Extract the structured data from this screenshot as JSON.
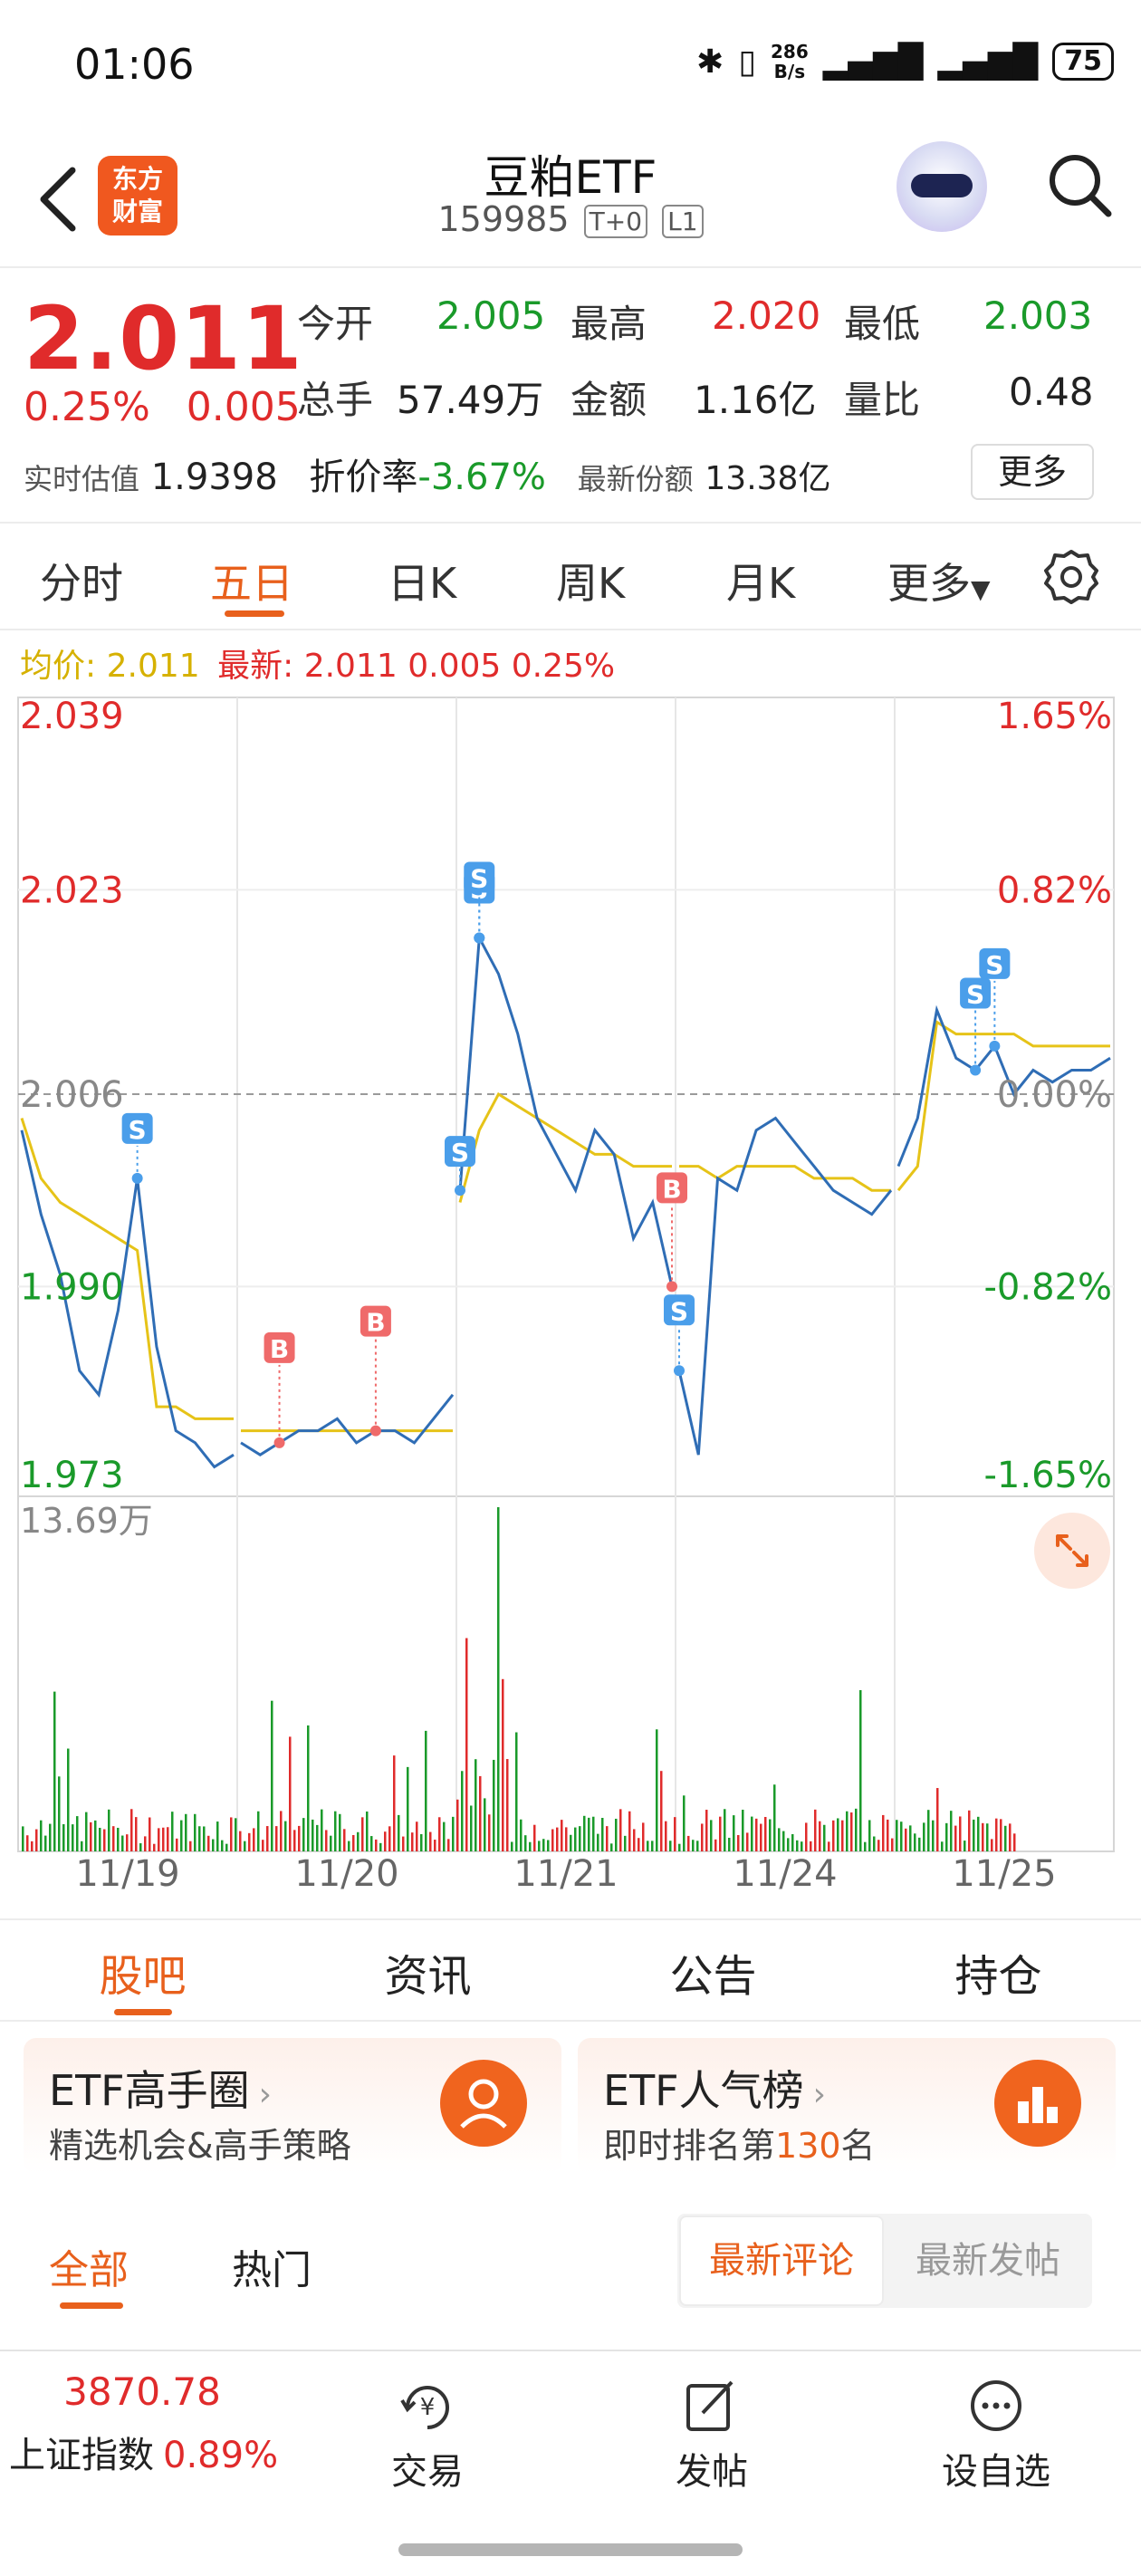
{
  "status_bar": {
    "time": "01:06",
    "net_speed_value": "286",
    "net_speed_unit": "B/s",
    "battery": "75"
  },
  "header": {
    "broker_logo": "东方\n财富",
    "stock_name": "豆粕ETF",
    "stock_code": "159985",
    "tag_t0": "T+0",
    "tag_l1": "L1"
  },
  "quote": {
    "last_price": "2.011",
    "change_pct": "0.25%",
    "change_amt": "0.005",
    "open_label": "今开",
    "open": "2.005",
    "high_label": "最高",
    "high": "2.020",
    "low_label": "最低",
    "low": "2.003",
    "volume_label": "总手",
    "volume": "57.49万",
    "amount_label": "金额",
    "amount": "1.16亿",
    "vol_ratio_label": "量比",
    "vol_ratio": "0.48",
    "est_label": "实时估值",
    "est_value": "1.9398",
    "discount_label": "折价率",
    "discount_value": "-3.67%",
    "shares_label": "最新份额",
    "shares_value": "13.38亿",
    "more_button": "更多"
  },
  "period_tabs": {
    "intraday": "分时",
    "five_day": "五日",
    "daily": "日K",
    "weekly": "周K",
    "monthly": "月K",
    "more": "更多"
  },
  "chart_legend": {
    "avg_label": "均价:",
    "avg_value": "2.011",
    "latest_label": "最新:",
    "latest_value": "2.011",
    "latest_change": "0.005",
    "latest_pct": "0.25%"
  },
  "chart_data": {
    "type": "line",
    "title": "",
    "x_labels": [
      "11/19",
      "11/20",
      "11/21",
      "11/24",
      "11/25"
    ],
    "y_left_ticks": [
      "2.039",
      "2.023",
      "2.006",
      "1.990",
      "1.973"
    ],
    "y_right_ticks": [
      "1.65%",
      "0.82%",
      "0.00%",
      "-0.82%",
      "-1.65%"
    ],
    "ylim": [
      1.973,
      2.039
    ],
    "prev_close": 2.006,
    "volume_max_label": "13.69万",
    "series": [
      {
        "name": "price",
        "values": [
          2.003,
          1.996,
          1.991,
          1.983,
          1.981,
          1.988,
          1.999,
          1.985,
          1.978,
          1.977,
          1.975,
          1.976,
          1.977,
          1.976,
          1.977,
          1.978,
          1.978,
          1.979,
          1.977,
          1.978,
          1.978,
          1.977,
          1.979,
          1.981,
          1.998,
          2.019,
          2.016,
          2.011,
          2.004,
          2.001,
          1.998,
          2.003,
          2.001,
          1.994,
          1.997,
          1.99,
          1.983,
          1.976,
          1.999,
          1.998,
          2.003,
          2.004,
          2.002,
          2.0,
          1.998,
          1.997,
          1.996,
          1.998,
          2.0,
          2.004,
          2.013,
          2.009,
          2.008,
          2.01,
          2.006,
          2.008,
          2.007,
          2.008,
          2.008,
          2.009
        ]
      },
      {
        "name": "avg",
        "values": [
          2.004,
          1.999,
          1.997,
          1.996,
          1.995,
          1.994,
          1.993,
          1.98,
          1.98,
          1.979,
          1.979,
          1.979,
          1.978,
          1.978,
          1.978,
          1.978,
          1.978,
          1.978,
          1.978,
          1.978,
          1.978,
          1.978,
          1.978,
          1.978,
          1.997,
          2.003,
          2.006,
          2.005,
          2.004,
          2.003,
          2.002,
          2.001,
          2.001,
          2.0,
          2.0,
          2.0,
          2.0,
          2.0,
          1.999,
          2.0,
          2.0,
          2.0,
          2.0,
          1.999,
          1.999,
          1.999,
          1.998,
          1.998,
          1.998,
          2.0,
          2.012,
          2.011,
          2.011,
          2.011,
          2.011,
          2.01,
          2.01,
          2.01,
          2.01,
          2.01
        ]
      }
    ],
    "markers": [
      {
        "label": "S",
        "day": 0,
        "color": "#4a9eea"
      },
      {
        "label": "B",
        "day": 1,
        "color": "#ef6a6a"
      },
      {
        "label": "B",
        "day": 1,
        "color": "#ef6a6a"
      },
      {
        "label": "S",
        "day": 2,
        "color": "#4a9eea"
      },
      {
        "label": "S",
        "day": 2,
        "color": "#4a9eea"
      },
      {
        "label": "S",
        "day": 2,
        "color": "#4a9eea"
      },
      {
        "label": "B",
        "day": 2,
        "color": "#ef6a6a"
      },
      {
        "label": "S",
        "day": 3,
        "color": "#4a9eea"
      },
      {
        "label": "S",
        "day": 4,
        "color": "#4a9eea"
      },
      {
        "label": "S",
        "day": 4,
        "color": "#4a9eea"
      }
    ],
    "colors": {
      "price": "#2f6db5",
      "avg": "#e6c318",
      "up": "#e02b2b",
      "down": "#1a9a2a"
    }
  },
  "content_tabs": [
    "股吧",
    "资讯",
    "公告",
    "持仓"
  ],
  "promo": {
    "card1_title": "ETF高手圈",
    "card1_sub": "精选机会&高手策略",
    "card2_title": "ETF人气榜",
    "card2_sub_prefix": "即时排名第",
    "card2_rank": "130",
    "card2_sub_suffix": "名"
  },
  "filters": {
    "all": "全部",
    "hot": "热门",
    "latest_comment": "最新评论",
    "latest_post": "最新发帖"
  },
  "bottom_bar": {
    "index_value": "3870.78",
    "index_name": "上证指数",
    "index_pct": "0.89%",
    "trade": "交易",
    "post": "发帖",
    "watchlist": "设自选"
  },
  "icons": [
    "back-icon",
    "search-icon",
    "settings-icon",
    "expand-icon",
    "trade-icon",
    "post-icon",
    "watchlist-icon"
  ]
}
